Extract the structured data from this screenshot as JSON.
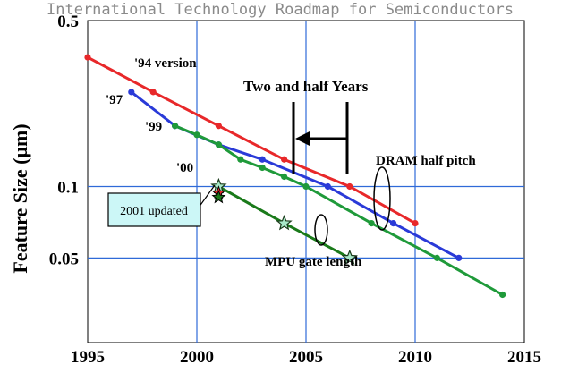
{
  "chart_data": {
    "type": "line",
    "title": "International Technology Roadmap for Semiconductors",
    "ylabel": "Feature Size (μm)",
    "xlabel": "",
    "xlim": [
      1995,
      2015
    ],
    "ylim": [
      0.022,
      0.5
    ],
    "yscale": "log",
    "grid": true,
    "x_ticks": [
      "1995",
      "2000",
      "2005",
      "2010",
      "2015"
    ],
    "y_ticks": [
      {
        "value": 0.5,
        "label": "0.5"
      },
      {
        "value": 0.1,
        "label": "0.1"
      },
      {
        "value": 0.05,
        "label": "0.05"
      }
    ],
    "series": [
      {
        "name": "'94 version",
        "color": "#e8282a",
        "marker": "circle",
        "x": [
          1995,
          1998,
          2001,
          2004,
          2007,
          2010
        ],
        "y": [
          0.35,
          0.25,
          0.18,
          0.13,
          0.1,
          0.07
        ]
      },
      {
        "name": "'97",
        "color": "#2a3ad8",
        "marker": "circle",
        "x": [
          1997,
          1999,
          2001,
          2003,
          2006,
          2009,
          2012
        ],
        "y": [
          0.25,
          0.18,
          0.15,
          0.13,
          0.1,
          0.07,
          0.05
        ]
      },
      {
        "name": "'99",
        "color": "#1f9a3a",
        "marker": "circle",
        "x": [
          1999,
          2000,
          2001,
          2002,
          2003,
          2004,
          2005,
          2008,
          2011,
          2014
        ],
        "y": [
          0.18,
          0.165,
          0.15,
          0.13,
          0.12,
          0.11,
          0.1,
          0.07,
          0.05,
          0.035
        ]
      },
      {
        "name": "'00",
        "color": "#1a7a1a",
        "marker": "star",
        "x": [
          2001,
          2004,
          2007
        ],
        "y": [
          0.1,
          0.07,
          0.05
        ]
      }
    ],
    "updated_points": [
      {
        "x": 2001,
        "y": 0.094,
        "color": "#e8282a"
      },
      {
        "x": 2001,
        "y": 0.09,
        "color": "#1a7a1a"
      }
    ],
    "annotations": {
      "v94": "'94 version",
      "v97": "'97",
      "v99": "'99",
      "v00": "'00",
      "two_half": "Two and half Years",
      "dram": "DRAM half pitch",
      "mpu": "MPU gate length",
      "updated": "2001 updated"
    },
    "colors": {
      "grid": "#2f6ad8",
      "callout_bg": "#ccf7f7"
    }
  }
}
